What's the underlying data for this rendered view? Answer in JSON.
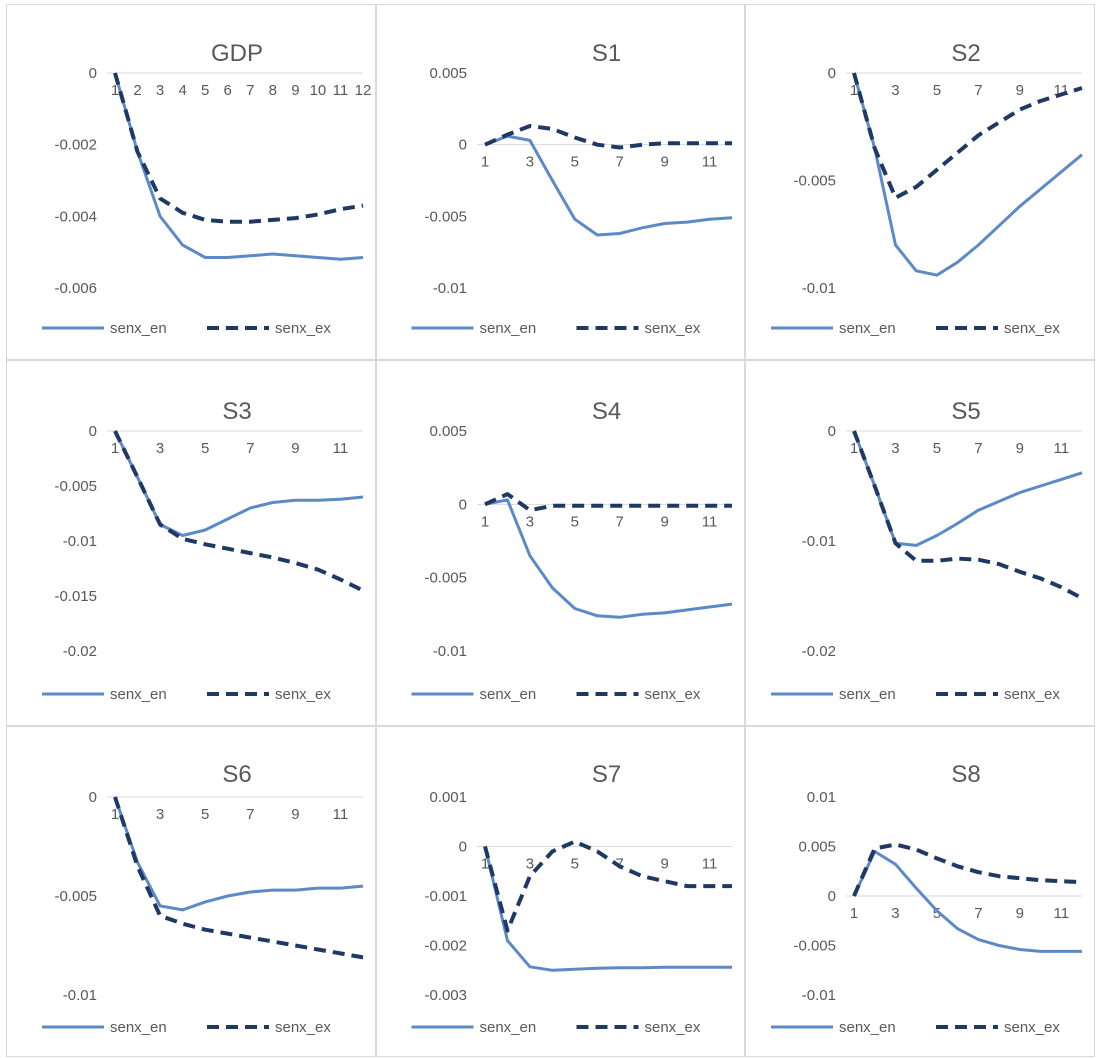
{
  "colors": {
    "senx_en": "#5b8ac6",
    "senx_ex": "#1f3864",
    "axis": "#d9d9d9",
    "text": "#595959"
  },
  "legend": [
    "senx_en",
    "senx_ex"
  ],
  "chart_data": [
    {
      "type": "line",
      "title": "GDP",
      "x": [
        1,
        2,
        3,
        4,
        5,
        6,
        7,
        8,
        9,
        10,
        11,
        12
      ],
      "x_tick_labels": [
        "1",
        "2",
        "3",
        "4",
        "5",
        "6",
        "7",
        "8",
        "9",
        "10",
        "11",
        "12"
      ],
      "ylim": [
        -0.006,
        0
      ],
      "y_ticks": [
        0,
        -0.002,
        -0.004,
        -0.006
      ],
      "y_tick_labels": [
        "0",
        "-0.002",
        "-0.004",
        "-0.006"
      ],
      "series": [
        {
          "name": "senx_en",
          "values": [
            0,
            -0.0022,
            -0.004,
            -0.0048,
            -0.00515,
            -0.00515,
            -0.0051,
            -0.00505,
            -0.0051,
            -0.00515,
            -0.0052,
            -0.00515
          ]
        },
        {
          "name": "senx_ex",
          "values": [
            0,
            -0.0022,
            -0.0035,
            -0.0039,
            -0.0041,
            -0.00415,
            -0.00415,
            -0.0041,
            -0.00405,
            -0.00395,
            -0.0038,
            -0.0037
          ]
        }
      ],
      "legend": "bottom"
    },
    {
      "type": "line",
      "title": "S1",
      "x": [
        1,
        2,
        3,
        4,
        5,
        6,
        7,
        8,
        9,
        10,
        11,
        12
      ],
      "x_tick_labels": [
        "1",
        "3",
        "5",
        "7",
        "9",
        "11"
      ],
      "ylim": [
        -0.01,
        0.005
      ],
      "y_ticks": [
        0.005,
        0,
        -0.005,
        -0.01
      ],
      "y_tick_labels": [
        "0.005",
        "0",
        "-0.005",
        "-0.01"
      ],
      "series": [
        {
          "name": "senx_en",
          "values": [
            0,
            0.0006,
            0.0003,
            -0.0025,
            -0.0052,
            -0.0063,
            -0.0062,
            -0.0058,
            -0.0055,
            -0.0054,
            -0.0052,
            -0.0051
          ]
        },
        {
          "name": "senx_ex",
          "values": [
            0,
            0.0007,
            0.0013,
            0.0011,
            0.0005,
            0,
            -0.0002,
            0,
            0.0001,
            0.0001,
            0.0001,
            0.0001
          ]
        }
      ],
      "legend": "bottom"
    },
    {
      "type": "line",
      "title": "S2",
      "x": [
        1,
        2,
        3,
        4,
        5,
        6,
        7,
        8,
        9,
        10,
        11,
        12
      ],
      "x_tick_labels": [
        "1",
        "3",
        "5",
        "7",
        "9",
        "11"
      ],
      "ylim": [
        -0.01,
        0
      ],
      "y_ticks": [
        0,
        -0.005,
        -0.01
      ],
      "y_tick_labels": [
        "0",
        "-0.005",
        "-0.01"
      ],
      "series": [
        {
          "name": "senx_en",
          "values": [
            0,
            -0.0035,
            -0.008,
            -0.0092,
            -0.0094,
            -0.0088,
            -0.008,
            -0.0071,
            -0.0062,
            -0.0054,
            -0.0046,
            -0.0038
          ]
        },
        {
          "name": "senx_ex",
          "values": [
            0,
            -0.0035,
            -0.0058,
            -0.0053,
            -0.0045,
            -0.0037,
            -0.0029,
            -0.0023,
            -0.0017,
            -0.0013,
            -0.001,
            -0.0007
          ]
        }
      ],
      "legend": "bottom"
    },
    {
      "type": "line",
      "title": "S3",
      "x": [
        1,
        2,
        3,
        4,
        5,
        6,
        7,
        8,
        9,
        10,
        11,
        12
      ],
      "x_tick_labels": [
        "1",
        "3",
        "5",
        "7",
        "9",
        "11"
      ],
      "ylim": [
        -0.02,
        0
      ],
      "y_ticks": [
        0,
        -0.005,
        -0.01,
        -0.015,
        -0.02
      ],
      "y_tick_labels": [
        "0",
        "-0.005",
        "-0.01",
        "-0.015",
        "-0.02"
      ],
      "series": [
        {
          "name": "senx_en",
          "values": [
            0,
            -0.0042,
            -0.0085,
            -0.0095,
            -0.009,
            -0.008,
            -0.007,
            -0.0065,
            -0.0063,
            -0.0063,
            -0.0062,
            -0.006
          ]
        },
        {
          "name": "senx_ex",
          "values": [
            0,
            -0.0042,
            -0.0085,
            -0.0098,
            -0.0103,
            -0.0107,
            -0.0111,
            -0.0115,
            -0.012,
            -0.0126,
            -0.0135,
            -0.0145
          ]
        }
      ],
      "legend": "bottom"
    },
    {
      "type": "line",
      "title": "S4",
      "x": [
        1,
        2,
        3,
        4,
        5,
        6,
        7,
        8,
        9,
        10,
        11,
        12
      ],
      "x_tick_labels": [
        "1",
        "3",
        "5",
        "7",
        "9",
        "11"
      ],
      "ylim": [
        -0.01,
        0.005
      ],
      "y_ticks": [
        0.005,
        0,
        -0.005,
        -0.01
      ],
      "y_tick_labels": [
        "0.005",
        "0",
        "-0.005",
        "-0.01"
      ],
      "series": [
        {
          "name": "senx_en",
          "values": [
            0,
            0.0003,
            -0.0035,
            -0.0057,
            -0.0071,
            -0.0076,
            -0.0077,
            -0.0075,
            -0.0074,
            -0.0072,
            -0.007,
            -0.0068
          ]
        },
        {
          "name": "senx_ex",
          "values": [
            0,
            0.0007,
            -0.0004,
            -0.0001,
            -0.0001,
            -0.0001,
            -0.0001,
            -0.0001,
            -0.0001,
            -0.0001,
            -0.0001,
            -0.0001
          ]
        }
      ],
      "legend": "bottom"
    },
    {
      "type": "line",
      "title": "S5",
      "x": [
        1,
        2,
        3,
        4,
        5,
        6,
        7,
        8,
        9,
        10,
        11,
        12
      ],
      "x_tick_labels": [
        "1",
        "3",
        "5",
        "7",
        "9",
        "11"
      ],
      "ylim": [
        -0.02,
        0
      ],
      "y_ticks": [
        0,
        -0.01,
        -0.02
      ],
      "y_tick_labels": [
        "0",
        "-0.01",
        "-0.02"
      ],
      "series": [
        {
          "name": "senx_en",
          "values": [
            0,
            -0.005,
            -0.0102,
            -0.0104,
            -0.0095,
            -0.0084,
            -0.0072,
            -0.0064,
            -0.0056,
            -0.005,
            -0.0044,
            -0.0038
          ]
        },
        {
          "name": "senx_ex",
          "values": [
            0,
            -0.005,
            -0.0102,
            -0.0118,
            -0.0118,
            -0.0116,
            -0.0117,
            -0.0121,
            -0.0128,
            -0.0134,
            -0.0142,
            -0.0152
          ]
        }
      ],
      "legend": "bottom"
    },
    {
      "type": "line",
      "title": "S6",
      "x": [
        1,
        2,
        3,
        4,
        5,
        6,
        7,
        8,
        9,
        10,
        11,
        12
      ],
      "x_tick_labels": [
        "1",
        "3",
        "5",
        "7",
        "9",
        "11"
      ],
      "ylim": [
        -0.01,
        0
      ],
      "y_ticks": [
        0,
        -0.005,
        -0.01
      ],
      "y_tick_labels": [
        "0",
        "-0.005",
        "-0.01"
      ],
      "series": [
        {
          "name": "senx_en",
          "values": [
            0,
            -0.0033,
            -0.0055,
            -0.0057,
            -0.0053,
            -0.005,
            -0.0048,
            -0.0047,
            -0.0047,
            -0.0046,
            -0.0046,
            -0.0045
          ]
        },
        {
          "name": "senx_ex",
          "values": [
            0,
            -0.0035,
            -0.006,
            -0.0064,
            -0.0067,
            -0.0069,
            -0.0071,
            -0.0073,
            -0.0075,
            -0.0077,
            -0.0079,
            -0.0081
          ]
        }
      ],
      "legend": "bottom"
    },
    {
      "type": "line",
      "title": "S7",
      "x": [
        1,
        2,
        3,
        4,
        5,
        6,
        7,
        8,
        9,
        10,
        11,
        12
      ],
      "x_tick_labels": [
        "1",
        "3",
        "5",
        "7",
        "9",
        "11"
      ],
      "ylim": [
        -0.003,
        0.001
      ],
      "y_ticks": [
        0.001,
        0,
        -0.001,
        -0.002,
        -0.003
      ],
      "y_tick_labels": [
        "0.001",
        "0",
        "-0.001",
        "-0.002",
        "-0.003"
      ],
      "series": [
        {
          "name": "senx_en",
          "values": [
            0,
            -0.0019,
            -0.00243,
            -0.0025,
            -0.00248,
            -0.00246,
            -0.00245,
            -0.00245,
            -0.00244,
            -0.00244,
            -0.00244,
            -0.00244
          ]
        },
        {
          "name": "senx_ex",
          "values": [
            0,
            -0.0017,
            -0.0006,
            -0.0001,
            0.0001,
            -0.0001,
            -0.0004,
            -0.0006,
            -0.0007,
            -0.0008,
            -0.0008,
            -0.0008
          ]
        }
      ],
      "legend": "bottom"
    },
    {
      "type": "line",
      "title": "S8",
      "x": [
        1,
        2,
        3,
        4,
        5,
        6,
        7,
        8,
        9,
        10,
        11,
        12
      ],
      "x_tick_labels": [
        "1",
        "3",
        "5",
        "7",
        "9",
        "11"
      ],
      "ylim": [
        -0.01,
        0.01
      ],
      "y_ticks": [
        0.01,
        0.005,
        0,
        -0.005,
        -0.01
      ],
      "y_tick_labels": [
        "0.01",
        "0.005",
        "0",
        "-0.005",
        "-0.01"
      ],
      "series": [
        {
          "name": "senx_en",
          "values": [
            0,
            0.0045,
            0.0032,
            0.0008,
            -0.0015,
            -0.0033,
            -0.0044,
            -0.005,
            -0.0054,
            -0.0056,
            -0.0056,
            -0.0056
          ]
        },
        {
          "name": "senx_ex",
          "values": [
            0,
            0.0048,
            0.0052,
            0.0047,
            0.0038,
            0.003,
            0.0024,
            0.002,
            0.0018,
            0.0016,
            0.0015,
            0.0014
          ]
        }
      ],
      "legend": "bottom"
    }
  ]
}
